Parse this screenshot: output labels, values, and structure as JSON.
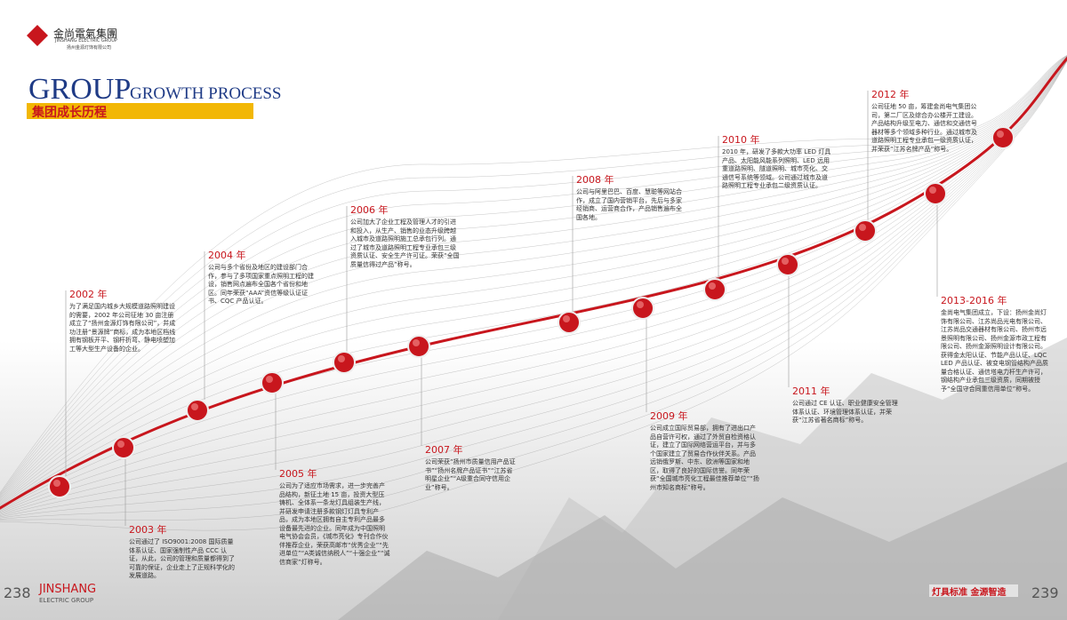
{
  "header": {
    "logo_name": "金尚電氣集團",
    "logo_en": "JINSHANG ELECTRIC GROUP",
    "logo_company": "扬州金源灯饰有限公司"
  },
  "title": {
    "main": "GROUP",
    "sub": "GROWTH PROCESS",
    "cn": "集团成长历程"
  },
  "milestones": [
    {
      "year": "2002 年",
      "text": "为了满足国内城乡大规模道路照明建设的需要，2002 年公司征地 30 亩注册成立了“扬州金源灯饰有限公司”，并成功注册“景源牌”商标，成为本地区档线拥有钢板开平、钢杆折弯、静电喷塑加工等大型生产设备的企业。"
    },
    {
      "year": "2003 年",
      "text": "公司通过了 ISO9001:2008 国际质量体系认证、国家强制性产品 CCC 认证，从此，公司的管理和质量都得到了可靠的保证，企业走上了正规科学化的发展道路。"
    },
    {
      "year": "2004 年",
      "text": "公司与多个省份及地区的建设部门合作，参与了多项国家重点照明工程的建设，销售网点遍布全国各个省份和地区。同年荣获“AAA”资信等级认证证书、CQC 产品认证。"
    },
    {
      "year": "2005 年",
      "text": "公司为了适应市场需求，进一步完善产品结构，新征土地 15 亩，投资大型压铸机、全体系一条龙灯具组装生产线，并研发申请注册多款钢灯灯具专利产品，成为本地区拥有自主专利产品最多设备最先进的企业。同年成为中国照明电气协会会员，《城市亮化》专刊合作伙伴推荐企业，荣获高邮市“优秀企业”“先进单位”“A类诚信纳税人”“十强企业”“诚信商家”灯称号。"
    },
    {
      "year": "2006 年",
      "text": "公司加大了企业工程及管理人才的引进和投入，从生产、销售的业态升级跨越入城市及道路照明施工总承包行列。通过了城市及道路照明工程专业承包三级资质认证、安全生产许可证。荣获“全国质量信得过产品”称号。"
    },
    {
      "year": "2007 年",
      "text": "公司荣获“扬州市质量信用产品证书”“扬州名牌产品证书”“江苏省明星企业”“A级重合同守信用企业”称号。"
    },
    {
      "year": "2008 年",
      "text": "公司与阿里巴巴、百度、慧聪等网站合作，成立了国内营销平台，先后与多家经销商、运营商合作，产品销售遍布全国各地。"
    },
    {
      "year": "2009 年",
      "text": "公司成立国际贸易部，拥有了进出口产品自营许可权，通过了外贸自检资格认证，建立了国际网络营运平台，并与多个国家建立了贸易合作伙伴关系。产品远销俄罗斯、中东、欧洲等国家和地区，取得了良好的国际信誉。同年荣获“全国城市亮化工程最佳推荐单位”“扬州市知名商标”称号。"
    },
    {
      "year": "2010 年",
      "text": "2010 年，研发了多款大功率 LED 灯具产品、太阳能风能系列照明、LED 远用重道路照明、隧道照明、城市亮化、交通信号系统等领域。公司通过城市及道路照明工程专业承包二级资质认证。"
    },
    {
      "year": "2011 年",
      "text": "公司通过 CE 认证、职业健康安全管理体系认证、环境管理体系认证，并荣获“江苏省著名商标”称号。"
    },
    {
      "year": "2012 年",
      "text": "公司征地 50 亩，筹建金尚电气集团公司，第二厂区及综合办公楼开工建设。产品结构升级至电力、通信和交通信号器材等多个领域多种行业。通过城市及道路照明工程专业承包一级资质认证，并荣获“江苏名牌产品”称号。"
    },
    {
      "year": "2013-2016 年",
      "text": "金尚电气集团成立，下设：扬州金尚灯饰有限公司、江苏尚品光电有限公司、江苏尚品交通器材有限公司、扬州市远景照明有限公司、扬州金源市政工程有限公司、扬州金源照明设计有限公司。获得金太阳认证、节能产品认证、LQC LED 产品认证、被变电钢管结构产品质量合格认证、通信塔电力杆生产许可，钢结构产业承包三级资质，同期被授予“全国守合同重信用单位”称号。"
    }
  ],
  "footer": {
    "left_page": "238",
    "left_brand": "JINSHANG",
    "left_sub": "ELECTRIC GROUP",
    "right_slogan": "灯具标准 金源智造",
    "right_page": "239"
  }
}
